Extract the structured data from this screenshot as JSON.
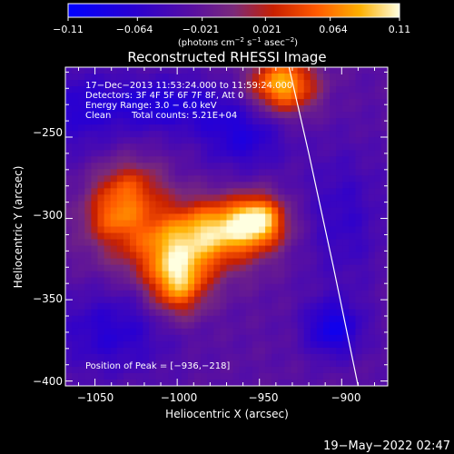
{
  "chart_data": {
    "type": "heatmap",
    "title": "Reconstructed RHESSI Image",
    "xlabel": "Heliocentric X (arcsec)",
    "ylabel": "Heliocentric Y (arcsec)",
    "xlim": [
      -1068,
      -872
    ],
    "ylim": [
      -403,
      -207
    ],
    "x_ticks": [
      -1050,
      -1000,
      -950,
      -900
    ],
    "x_tick_labels": [
      "−1050",
      "−1000",
      "−950",
      "−900"
    ],
    "y_ticks": [
      -250,
      -300,
      -350,
      -400
    ],
    "y_tick_labels": [
      "−250",
      "−300",
      "−350",
      "−400"
    ],
    "colorbar": {
      "range": [
        -0.11,
        0.11
      ],
      "ticks": [
        -0.11,
        -0.064,
        -0.021,
        0.021,
        0.064,
        0.11
      ],
      "tick_labels": [
        "−0.11",
        "−0.064",
        "−0.021",
        "0.021",
        "0.064",
        "0.11"
      ],
      "unit_label": "(photons cm",
      "unit_exp1": "−2",
      "unit_mid": " s",
      "unit_exp2": "−1",
      "unit_mid2": " asec",
      "unit_exp3": "−2",
      "unit_end": ")"
    },
    "annotations": {
      "time_range": "17−Dec−2013 11:53:24.000 to 11:59:24.000",
      "detectors": "Detectors: 3F 4F 5F 6F 7F 8F, Att 0",
      "energy_range": "Energy Range: 3.0 − 6.0 keV",
      "method": "Clean",
      "total_counts": "Total counts: 5.21E+04",
      "peak_position": "Position of Peak = [−936,−218]"
    },
    "peak": [
      -936,
      -218
    ],
    "grid": false,
    "sources": [
      {
        "x": -1000,
        "y": -315,
        "sx": 28,
        "sy": 16,
        "amp": 0.095
      },
      {
        "x": -1000,
        "y": -340,
        "sx": 12,
        "sy": 14,
        "amp": 0.1
      },
      {
        "x": -965,
        "y": -305,
        "sx": 20,
        "sy": 12,
        "amp": 0.085
      },
      {
        "x": -950,
        "y": -300,
        "sx": 10,
        "sy": 10,
        "amp": 0.08
      },
      {
        "x": -1030,
        "y": -282,
        "sx": 15,
        "sy": 12,
        "amp": 0.07
      },
      {
        "x": -1040,
        "y": -300,
        "sx": 12,
        "sy": 10,
        "amp": 0.05
      },
      {
        "x": -936,
        "y": -218,
        "sx": 14,
        "sy": 12,
        "amp": 0.115
      },
      {
        "x": -1040,
        "y": -370,
        "sx": 25,
        "sy": 18,
        "amp": -0.04
      },
      {
        "x": -960,
        "y": -250,
        "sx": 18,
        "sy": 14,
        "amp": -0.045
      },
      {
        "x": -900,
        "y": -300,
        "sx": 18,
        "sy": 30,
        "amp": -0.03
      },
      {
        "x": -1010,
        "y": -230,
        "sx": 30,
        "sy": 12,
        "amp": -0.05
      },
      {
        "x": -1060,
        "y": -235,
        "sx": 15,
        "sy": 20,
        "amp": -0.03
      },
      {
        "x": -905,
        "y": -368,
        "sx": 12,
        "sy": 12,
        "amp": -0.06
      }
    ],
    "limb_arc": [
      [
        -932,
        -207
      ],
      [
        -920,
        -260
      ],
      [
        -905,
        -330
      ],
      [
        -890,
        -403
      ]
    ]
  },
  "footer": {
    "date": "19−May−2022 02:47"
  }
}
